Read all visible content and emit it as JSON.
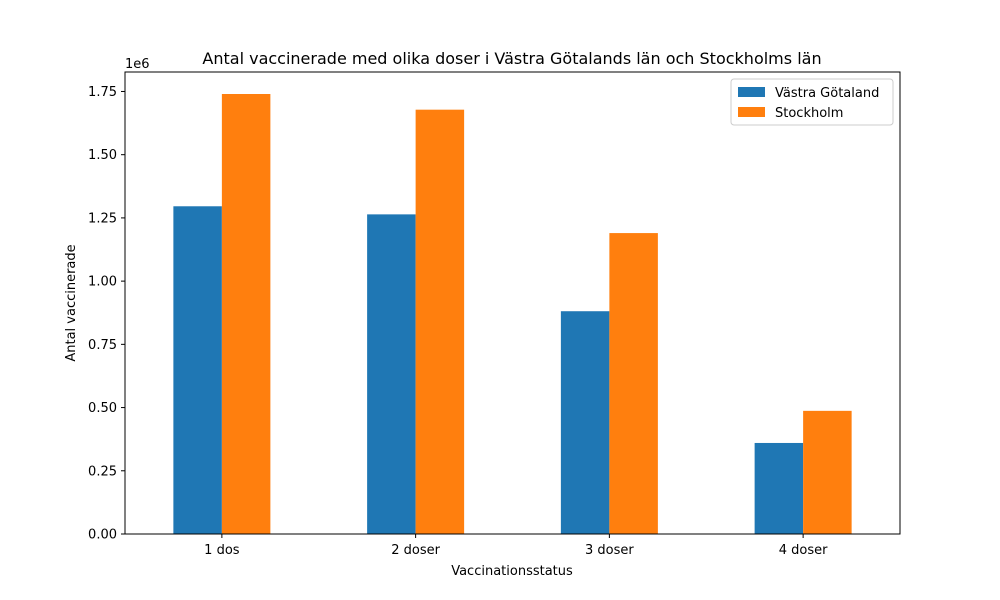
{
  "chart_data": {
    "type": "bar",
    "title": "Antal vaccinerade med olika doser i Västra Götalands län och Stockholms län",
    "xlabel": "Vaccinationsstatus",
    "ylabel": "Antal vaccinerade",
    "y_offset_label": "1e6",
    "categories": [
      "1 dos",
      "2 doser",
      "3 doser",
      "4 doser"
    ],
    "series": [
      {
        "name": "Västra Götaland",
        "color": "#1f77b4",
        "values": [
          1296000,
          1264000,
          881000,
          360000
        ]
      },
      {
        "name": "Stockholm",
        "color": "#ff7f0e",
        "values": [
          1740000,
          1678000,
          1190000,
          487000
        ]
      }
    ],
    "ylim": [
      0,
      1827000
    ],
    "yticks": [
      0,
      250000,
      500000,
      750000,
      1000000,
      1250000,
      1500000,
      1750000
    ],
    "ytick_labels": [
      "0.00",
      "0.25",
      "0.50",
      "0.75",
      "1.00",
      "1.25",
      "1.50",
      "1.75"
    ],
    "grid": false,
    "legend_position": "top-right"
  }
}
